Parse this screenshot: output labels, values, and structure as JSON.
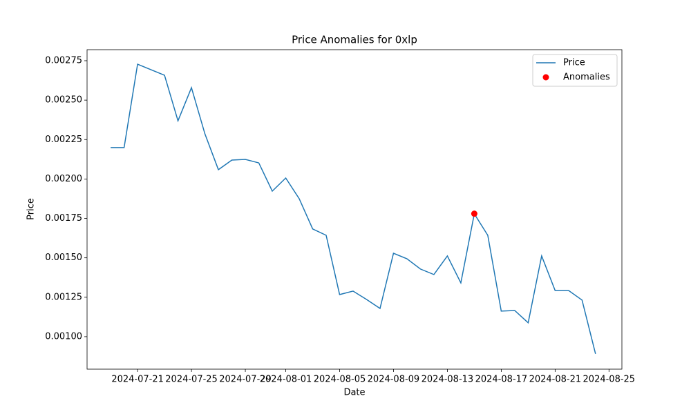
{
  "chart_data": {
    "type": "line",
    "title": "Price Anomalies for 0xlp",
    "x_label": "Date",
    "y_label": "Price",
    "x": [
      "2024-07-19",
      "2024-07-20",
      "2024-07-21",
      "2024-07-22",
      "2024-07-23",
      "2024-07-24",
      "2024-07-25",
      "2024-07-26",
      "2024-07-27",
      "2024-07-28",
      "2024-07-29",
      "2024-07-30",
      "2024-07-31",
      "2024-08-01",
      "2024-08-02",
      "2024-08-03",
      "2024-08-04",
      "2024-08-05",
      "2024-08-06",
      "2024-08-07",
      "2024-08-08",
      "2024-08-09",
      "2024-08-10",
      "2024-08-11",
      "2024-08-12",
      "2024-08-13",
      "2024-08-14",
      "2024-08-15",
      "2024-08-16",
      "2024-08-17",
      "2024-08-18",
      "2024-08-19",
      "2024-08-20",
      "2024-08-21",
      "2024-08-22",
      "2024-08-23",
      "2024-08-24"
    ],
    "series": [
      {
        "name": "Price",
        "type": "line",
        "color": "#1f77b4",
        "values": [
          0.002199,
          0.002199,
          0.002728,
          0.002693,
          0.002658,
          0.002369,
          0.002579,
          0.002286,
          0.002059,
          0.00212,
          0.002124,
          0.002102,
          0.001923,
          0.002006,
          0.001875,
          0.001683,
          0.001643,
          0.001267,
          0.001289,
          0.001236,
          0.001179,
          0.001529,
          0.001494,
          0.001429,
          0.001394,
          0.001512,
          0.001341,
          0.001779,
          0.001643,
          0.001162,
          0.001166,
          0.001088,
          0.001512,
          0.001293,
          0.001293,
          0.001232,
          0.000891
        ]
      },
      {
        "name": "Anomalies",
        "type": "scatter",
        "color": "#ff0000",
        "x": [
          "2024-08-15"
        ],
        "values": [
          0.00178
        ]
      }
    ],
    "xlim": [
      "2024-07-17T06:00",
      "2024-08-25T23:00"
    ],
    "xticks": [
      "2024-07-21",
      "2024-07-25",
      "2024-07-29",
      "2024-08-01",
      "2024-08-05",
      "2024-08-09",
      "2024-08-13",
      "2024-08-17",
      "2024-08-21",
      "2024-08-25"
    ],
    "ylim": [
      0.000794,
      0.00282
    ],
    "yticks": [
      {
        "value": 0.001,
        "label": "0.00100"
      },
      0.00125,
      {
        "value": 0.0015,
        "label": "0.00150"
      },
      0.00175,
      {
        "value": 0.002,
        "label": "0.00200"
      },
      0.00225,
      {
        "value": 0.0025,
        "label": "0.00250"
      },
      0.00275
    ],
    "legend": "upper right",
    "grid": false
  }
}
